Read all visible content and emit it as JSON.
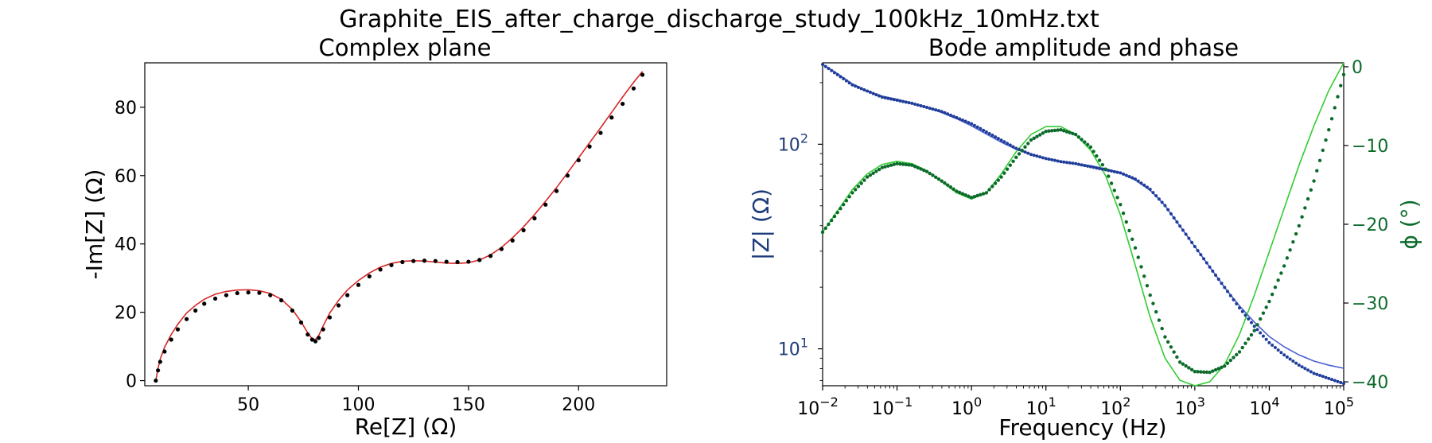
{
  "figure": {
    "suptitle": "Graphite_EIS_after_charge_discharge_study_100kHz_10mHz.txt"
  },
  "chart_data": [
    {
      "type": "scatter",
      "title": "Complex plane",
      "xlabel": "Re[Z] (Ω)",
      "ylabel": "-Im[Z] (Ω)",
      "xlim": [
        3,
        240
      ],
      "ylim": [
        -1.5,
        93
      ],
      "xticks": [
        50,
        100,
        150,
        200
      ],
      "yticks": [
        0,
        20,
        40,
        60,
        80
      ],
      "colors": {
        "data": "#000000",
        "fit": "#d62728"
      },
      "series": [
        {
          "kind": "markers",
          "points": [
            [
              8,
              0
            ],
            [
              9,
              3
            ],
            [
              10,
              5.5
            ],
            [
              12,
              8.5
            ],
            [
              15,
              12
            ],
            [
              18,
              15
            ],
            [
              22,
              18
            ],
            [
              26,
              20.5
            ],
            [
              30,
              22.5
            ],
            [
              35,
              24
            ],
            [
              40,
              25
            ],
            [
              45,
              25.6
            ],
            [
              50,
              25.8
            ],
            [
              55,
              25.7
            ],
            [
              60,
              25
            ],
            [
              65,
              23.5
            ],
            [
              70,
              20.5
            ],
            [
              74,
              17
            ],
            [
              77,
              13.5
            ],
            [
              79,
              12
            ],
            [
              80.5,
              11.5
            ],
            [
              82,
              12.5
            ],
            [
              84,
              15
            ],
            [
              87,
              18.5
            ],
            [
              91,
              22
            ],
            [
              95,
              25
            ],
            [
              100,
              28
            ],
            [
              105,
              30.5
            ],
            [
              110,
              32.5
            ],
            [
              115,
              33.8
            ],
            [
              120,
              34.7
            ],
            [
              125,
              35
            ],
            [
              130,
              35.1
            ],
            [
              135,
              35
            ],
            [
              140,
              34.8
            ],
            [
              145,
              34.7
            ],
            [
              150,
              34.8
            ],
            [
              155,
              35.3
            ],
            [
              160,
              36.5
            ],
            [
              165,
              38.5
            ],
            [
              170,
              41
            ],
            [
              175,
              44
            ],
            [
              180,
              47.5
            ],
            [
              185,
              51.5
            ],
            [
              190,
              55.5
            ],
            [
              195,
              60
            ],
            [
              200,
              64.5
            ],
            [
              205,
              68.5
            ],
            [
              210,
              72.5
            ],
            [
              215,
              77
            ],
            [
              220,
              81
            ],
            [
              225,
              85.5
            ],
            [
              229,
              89.5
            ]
          ]
        },
        {
          "kind": "line",
          "points": [
            [
              8,
              0
            ],
            [
              9,
              3.5
            ],
            [
              10,
              6.3
            ],
            [
              12,
              9.8
            ],
            [
              15,
              13.5
            ],
            [
              18,
              16.5
            ],
            [
              22,
              19.8
            ],
            [
              26,
              22
            ],
            [
              30,
              23.8
            ],
            [
              35,
              25.3
            ],
            [
              40,
              26.1
            ],
            [
              45,
              26.5
            ],
            [
              50,
              26.6
            ],
            [
              55,
              26.3
            ],
            [
              60,
              25.5
            ],
            [
              65,
              23.8
            ],
            [
              70,
              20.8
            ],
            [
              74,
              17.2
            ],
            [
              77,
              14
            ],
            [
              79,
              12.2
            ],
            [
              80.5,
              12
            ],
            [
              82,
              13.2
            ],
            [
              84,
              16
            ],
            [
              87,
              19.8
            ],
            [
              91,
              23.5
            ],
            [
              95,
              26.5
            ],
            [
              100,
              29.3
            ],
            [
              105,
              31.5
            ],
            [
              110,
              33.2
            ],
            [
              115,
              34.3
            ],
            [
              120,
              34.9
            ],
            [
              125,
              35.1
            ],
            [
              130,
              35
            ],
            [
              135,
              34.7
            ],
            [
              140,
              34.4
            ],
            [
              145,
              34.3
            ],
            [
              150,
              34.5
            ],
            [
              155,
              35.3
            ],
            [
              160,
              36.8
            ],
            [
              165,
              39
            ],
            [
              170,
              41.8
            ],
            [
              175,
              45
            ],
            [
              180,
              48.6
            ],
            [
              185,
              52.5
            ],
            [
              190,
              56.5
            ],
            [
              195,
              60.8
            ],
            [
              200,
              65.2
            ],
            [
              205,
              69.6
            ],
            [
              210,
              74
            ],
            [
              215,
              78.5
            ],
            [
              220,
              83
            ],
            [
              225,
              87.3
            ],
            [
              229,
              90.5
            ]
          ]
        }
      ]
    },
    {
      "type": "line",
      "title": "Bode amplitude and phase",
      "xlabel": "Frequency (Hz)",
      "ylabel_left": "|Z| (Ω)",
      "ylabel_right": "ϕ (°)",
      "xscale": "log",
      "yscale_left": "log",
      "xlim": [
        0.01,
        100000
      ],
      "ylim_left": [
        6.6,
        250
      ],
      "ylim_right": [
        -40.5,
        0.5
      ],
      "xticks": [
        {
          "base": "10",
          "exp": "−2"
        },
        {
          "base": "10",
          "exp": "−1"
        },
        {
          "base": "10",
          "exp": "0"
        },
        {
          "base": "10",
          "exp": "1"
        },
        {
          "base": "10",
          "exp": "2"
        },
        {
          "base": "10",
          "exp": "3"
        },
        {
          "base": "10",
          "exp": "4"
        },
        {
          "base": "10",
          "exp": "5"
        }
      ],
      "yticks_left": [
        {
          "base": "10",
          "exp": "1"
        },
        {
          "base": "10",
          "exp": "2"
        }
      ],
      "yticks_right": [
        "0",
        "−10",
        "−20",
        "−30",
        "−40"
      ],
      "colors": {
        "magnitude": "#1f3d99",
        "magnitude_fit": "#4a5fd0",
        "phase": "#0c6b2b",
        "phase_fit": "#33cc33",
        "left_axis_text": "#1f3d7a",
        "right_axis_text": "#0c6b2b"
      },
      "magnitude_data": [
        [
          -2,
          2.39
        ],
        [
          -1.8,
          2.34
        ],
        [
          -1.6,
          2.29
        ],
        [
          -1.4,
          2.26
        ],
        [
          -1.2,
          2.23
        ],
        [
          -1,
          2.215
        ],
        [
          -0.8,
          2.2
        ],
        [
          -0.6,
          2.18
        ],
        [
          -0.4,
          2.16
        ],
        [
          -0.2,
          2.13
        ],
        [
          0,
          2.1
        ],
        [
          0.2,
          2.06
        ],
        [
          0.4,
          2.02
        ],
        [
          0.6,
          1.98
        ],
        [
          0.8,
          1.95
        ],
        [
          1,
          1.93
        ],
        [
          1.2,
          1.915
        ],
        [
          1.4,
          1.905
        ],
        [
          1.6,
          1.89
        ],
        [
          1.8,
          1.875
        ],
        [
          2,
          1.86
        ],
        [
          2.2,
          1.83
        ],
        [
          2.4,
          1.78
        ],
        [
          2.6,
          1.7
        ],
        [
          2.8,
          1.6
        ],
        [
          3,
          1.5
        ],
        [
          3.2,
          1.4
        ],
        [
          3.4,
          1.3
        ],
        [
          3.6,
          1.2
        ],
        [
          3.8,
          1.11
        ],
        [
          4,
          1.03
        ],
        [
          4.2,
          0.97
        ],
        [
          4.4,
          0.92
        ],
        [
          4.6,
          0.88
        ],
        [
          4.8,
          0.855
        ],
        [
          5,
          0.83
        ]
      ],
      "magnitude_fit": [
        [
          -2,
          2.39
        ],
        [
          -1.8,
          2.345
        ],
        [
          -1.6,
          2.295
        ],
        [
          -1.4,
          2.26
        ],
        [
          -1.2,
          2.235
        ],
        [
          -1,
          2.22
        ],
        [
          -0.8,
          2.2
        ],
        [
          -0.6,
          2.18
        ],
        [
          -0.4,
          2.155
        ],
        [
          -0.2,
          2.125
        ],
        [
          0,
          2.09
        ],
        [
          0.2,
          2.05
        ],
        [
          0.4,
          2.01
        ],
        [
          0.6,
          1.975
        ],
        [
          0.8,
          1.95
        ],
        [
          1,
          1.93
        ],
        [
          1.2,
          1.915
        ],
        [
          1.4,
          1.905
        ],
        [
          1.6,
          1.895
        ],
        [
          1.8,
          1.88
        ],
        [
          2,
          1.86
        ],
        [
          2.2,
          1.825
        ],
        [
          2.4,
          1.775
        ],
        [
          2.6,
          1.7
        ],
        [
          2.8,
          1.6
        ],
        [
          3,
          1.5
        ],
        [
          3.2,
          1.4
        ],
        [
          3.4,
          1.3
        ],
        [
          3.6,
          1.21
        ],
        [
          3.8,
          1.13
        ],
        [
          4,
          1.06
        ],
        [
          4.2,
          1.01
        ],
        [
          4.4,
          0.97
        ],
        [
          4.6,
          0.94
        ],
        [
          4.8,
          0.92
        ],
        [
          5,
          0.905
        ]
      ],
      "phase_data": [
        [
          -2,
          -21
        ],
        [
          -1.8,
          -18.5
        ],
        [
          -1.6,
          -16
        ],
        [
          -1.4,
          -14
        ],
        [
          -1.2,
          -12.8
        ],
        [
          -1,
          -12.3
        ],
        [
          -0.8,
          -12.5
        ],
        [
          -0.6,
          -13.3
        ],
        [
          -0.4,
          -14.5
        ],
        [
          -0.2,
          -15.8
        ],
        [
          0,
          -16.6
        ],
        [
          0.2,
          -16
        ],
        [
          0.4,
          -14
        ],
        [
          0.6,
          -11.5
        ],
        [
          0.8,
          -9.3
        ],
        [
          1,
          -8.2
        ],
        [
          1.2,
          -8
        ],
        [
          1.4,
          -8.6
        ],
        [
          1.6,
          -10.2
        ],
        [
          1.8,
          -13
        ],
        [
          2,
          -17.5
        ],
        [
          2.2,
          -23
        ],
        [
          2.4,
          -29
        ],
        [
          2.6,
          -34.3
        ],
        [
          2.8,
          -37.5
        ],
        [
          3,
          -38.7
        ],
        [
          3.2,
          -38.8
        ],
        [
          3.4,
          -38
        ],
        [
          3.6,
          -36.2
        ],
        [
          3.8,
          -33.5
        ],
        [
          4,
          -29.8
        ],
        [
          4.2,
          -25.3
        ],
        [
          4.4,
          -20.2
        ],
        [
          4.6,
          -14.5
        ],
        [
          4.8,
          -8
        ],
        [
          5,
          -1
        ]
      ],
      "phase_fit": [
        [
          -2,
          -21
        ],
        [
          -1.8,
          -18.3
        ],
        [
          -1.6,
          -15.6
        ],
        [
          -1.4,
          -13.6
        ],
        [
          -1.2,
          -12.4
        ],
        [
          -1,
          -12
        ],
        [
          -0.8,
          -12.3
        ],
        [
          -0.6,
          -13.2
        ],
        [
          -0.4,
          -14.6
        ],
        [
          -0.2,
          -16
        ],
        [
          0,
          -16.8
        ],
        [
          0.2,
          -16
        ],
        [
          0.4,
          -13.6
        ],
        [
          0.6,
          -10.8
        ],
        [
          0.8,
          -8.6
        ],
        [
          1,
          -7.6
        ],
        [
          1.2,
          -7.6
        ],
        [
          1.4,
          -8.6
        ],
        [
          1.6,
          -10.6
        ],
        [
          1.8,
          -13.8
        ],
        [
          2,
          -18.8
        ],
        [
          2.2,
          -25.2
        ],
        [
          2.4,
          -31.8
        ],
        [
          2.6,
          -37
        ],
        [
          2.8,
          -39.8
        ],
        [
          3,
          -40.5
        ],
        [
          3.2,
          -40
        ],
        [
          3.4,
          -37.8
        ],
        [
          3.6,
          -34
        ],
        [
          3.8,
          -29
        ],
        [
          4,
          -23.5
        ],
        [
          4.2,
          -18
        ],
        [
          4.4,
          -12.5
        ],
        [
          4.6,
          -7.5
        ],
        [
          4.8,
          -3
        ],
        [
          5,
          0.5
        ]
      ]
    }
  ]
}
